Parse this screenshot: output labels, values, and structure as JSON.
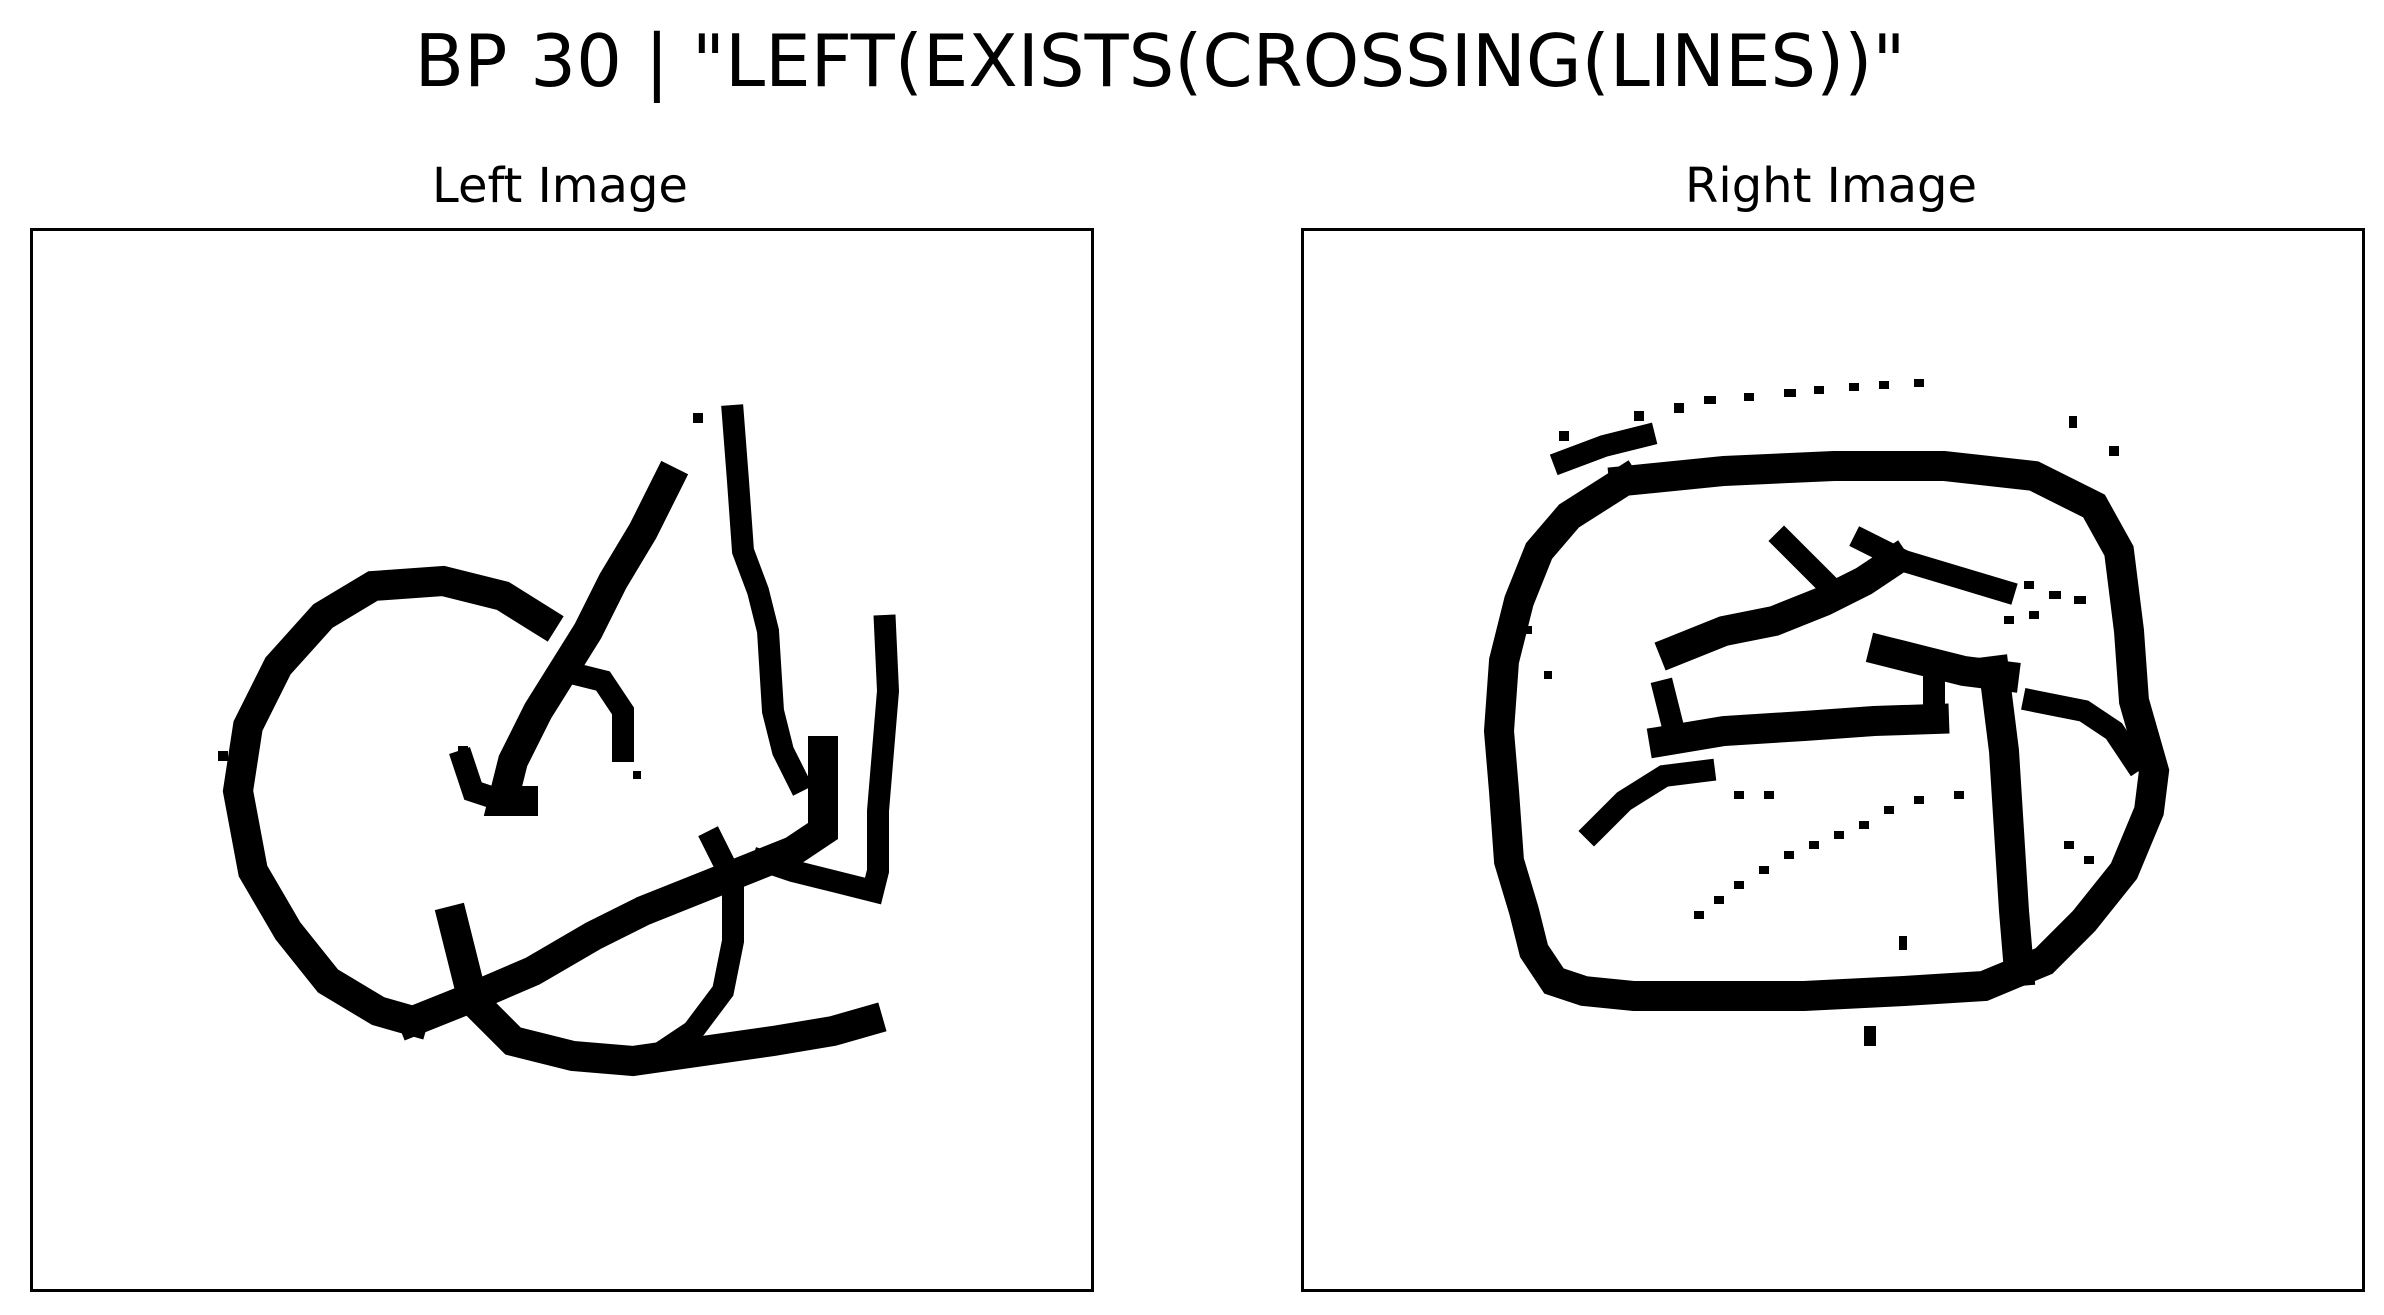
{
  "figure": {
    "title": "BP 30 | \"LEFT(EXISTS(CROSSING(LINES))\""
  },
  "panels": {
    "left": {
      "title": "Left Image"
    },
    "right": {
      "title": "Right Image"
    }
  }
}
